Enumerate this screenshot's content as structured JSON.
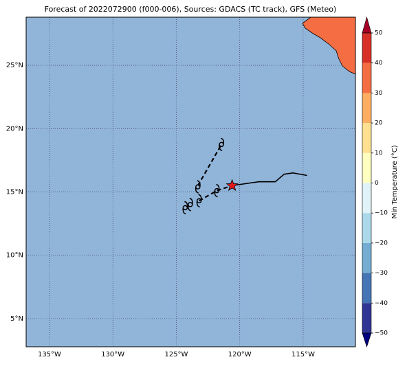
{
  "map": {
    "title": "Forecast of 2022072900 (f000-006), Sources: GDACS (TC track), GFS (Meteo)",
    "lonlim": [
      -136.84,
      -110.88
    ],
    "latlim": [
      2.77,
      28.8
    ],
    "lonticks": [
      {
        "value": -135,
        "label": "135°W"
      },
      {
        "value": -130,
        "label": "130°W"
      },
      {
        "value": -125,
        "label": "125°W"
      },
      {
        "value": -120,
        "label": "120°W"
      },
      {
        "value": -115,
        "label": "115°W"
      }
    ],
    "latticks": [
      {
        "value": 25,
        "label": "25°N"
      },
      {
        "value": 20,
        "label": "20°N"
      },
      {
        "value": 15,
        "label": "15°N"
      },
      {
        "value": 10,
        "label": "10°N"
      },
      {
        "value": 5,
        "label": "5°N"
      }
    ],
    "grid": true,
    "observed_track": {
      "lon": [
        -120.6,
        -118.5,
        -117.2,
        -116.5,
        -115.8,
        -114.7
      ],
      "lat": [
        15.5,
        15.8,
        15.8,
        16.4,
        16.5,
        16.3
      ]
    },
    "forecast_tracks": [
      {
        "lon": [
          -123.3,
          -121.44
        ],
        "lat": [
          15.5,
          18.75
        ]
      },
      {
        "lon": [
          -123.2,
          -121.8,
          -120.6
        ],
        "lat": [
          14.3,
          15.1,
          15.5
        ]
      }
    ],
    "current_position": {
      "lon": -120.6,
      "lat": 15.5
    },
    "storm_symbols": {
      "lon": [
        -121.44,
        -123.3,
        -121.8,
        -123.2,
        -123.9,
        -124.3
      ],
      "lat": [
        18.75,
        15.4,
        15.1,
        14.3,
        14.0,
        13.75
      ]
    },
    "colorbar": {
      "label": "Min Temperature (°C)",
      "lim": [
        -50,
        50
      ],
      "ticks": [
        50,
        40,
        30,
        20,
        10,
        0,
        {
          "value": -10,
          "label": "−10"
        },
        {
          "value": -20,
          "label": "−20"
        },
        {
          "value": -30,
          "label": "−30"
        },
        {
          "value": -40,
          "label": "−40"
        },
        {
          "value": -50,
          "label": "−50"
        }
      ],
      "levels": [
        -50,
        -40,
        -30,
        -20,
        -10,
        0,
        10,
        20,
        30,
        40,
        50
      ],
      "colors": [
        "#313695",
        "#4575b4",
        "#74add1",
        "#abd9e9",
        "#e0f3f8",
        "#ffffbf",
        "#fee090",
        "#fdae61",
        "#f46d43",
        "#d73027"
      ],
      "under_color": "#000080",
      "over_color": "#a50026"
    }
  }
}
